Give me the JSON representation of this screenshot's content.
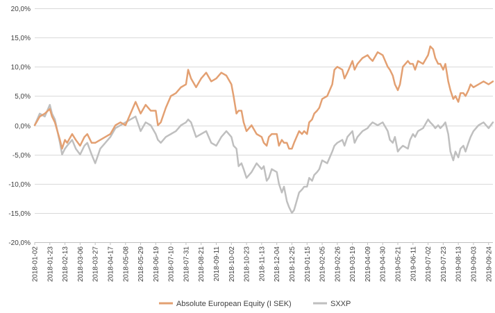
{
  "chart_data": {
    "type": "line",
    "title": "",
    "xlabel": "",
    "ylabel": "",
    "grid": true,
    "legend_position": "bottom",
    "y_range": [
      -20.0,
      20.0
    ],
    "y_ticks": [
      -20,
      -15,
      -10,
      -5,
      0,
      5,
      10,
      15,
      20
    ],
    "y_tick_labels": [
      "-20,0%",
      "-15,0%",
      "-10,0%",
      "-5,0%",
      "0,0%",
      "5,0%",
      "10,0%",
      "15,0%",
      "20,0%"
    ],
    "x_range": [
      "2018-01-02",
      "2019-09-30"
    ],
    "x_tick_labels": [
      "2018-01-02",
      "2018-01-23",
      "2018-02-13",
      "2018-03-06",
      "2018-03-27",
      "2018-04-17",
      "2018-05-08",
      "2018-05-29",
      "2018-06-19",
      "2018-07-10",
      "2018-07-31",
      "2018-08-21",
      "2018-09-11",
      "2018-10-02",
      "2018-10-23",
      "2018-11-13",
      "2018-12-04",
      "2018-12-25",
      "2019-01-15",
      "2019-02-05",
      "2019-02-26",
      "2019-03-19",
      "2019-04-09",
      "2019-04-30",
      "2019-05-21",
      "2019-06-11",
      "2019-07-02",
      "2019-07-23",
      "2019-08-13",
      "2019-09-03",
      "2019-09-24"
    ],
    "series": [
      {
        "name": "Absolute European Equity (I SEK)",
        "color": "#E3A072",
        "points": [
          [
            "2018-01-02",
            0.0
          ],
          [
            "2018-01-09",
            1.5
          ],
          [
            "2018-01-16",
            2.0
          ],
          [
            "2018-01-23",
            2.8
          ],
          [
            "2018-01-26",
            1.5
          ],
          [
            "2018-01-30",
            0.5
          ],
          [
            "2018-02-06",
            -2.5
          ],
          [
            "2018-02-09",
            -4.0
          ],
          [
            "2018-02-13",
            -2.5
          ],
          [
            "2018-02-16",
            -3.0
          ],
          [
            "2018-02-23",
            -1.5
          ],
          [
            "2018-02-28",
            -2.5
          ],
          [
            "2018-03-06",
            -3.5
          ],
          [
            "2018-03-12",
            -2.0
          ],
          [
            "2018-03-16",
            -1.5
          ],
          [
            "2018-03-22",
            -3.0
          ],
          [
            "2018-03-27",
            -3.0
          ],
          [
            "2018-04-03",
            -2.5
          ],
          [
            "2018-04-10",
            -2.0
          ],
          [
            "2018-04-17",
            -1.5
          ],
          [
            "2018-04-24",
            0.0
          ],
          [
            "2018-05-01",
            0.5
          ],
          [
            "2018-05-08",
            0.0
          ],
          [
            "2018-05-15",
            2.0
          ],
          [
            "2018-05-22",
            4.0
          ],
          [
            "2018-05-29",
            2.0
          ],
          [
            "2018-06-05",
            3.5
          ],
          [
            "2018-06-12",
            2.5
          ],
          [
            "2018-06-19",
            2.5
          ],
          [
            "2018-06-22",
            0.0
          ],
          [
            "2018-06-26",
            0.5
          ],
          [
            "2018-07-03",
            3.0
          ],
          [
            "2018-07-10",
            5.0
          ],
          [
            "2018-07-17",
            5.5
          ],
          [
            "2018-07-24",
            6.5
          ],
          [
            "2018-07-31",
            7.0
          ],
          [
            "2018-08-03",
            9.5
          ],
          [
            "2018-08-07",
            8.0
          ],
          [
            "2018-08-14",
            6.5
          ],
          [
            "2018-08-21",
            8.0
          ],
          [
            "2018-08-28",
            9.0
          ],
          [
            "2018-09-04",
            7.5
          ],
          [
            "2018-09-11",
            8.0
          ],
          [
            "2018-09-18",
            9.0
          ],
          [
            "2018-09-25",
            8.5
          ],
          [
            "2018-10-02",
            7.0
          ],
          [
            "2018-10-05",
            5.0
          ],
          [
            "2018-10-09",
            2.0
          ],
          [
            "2018-10-12",
            2.5
          ],
          [
            "2018-10-16",
            2.5
          ],
          [
            "2018-10-19",
            0.5
          ],
          [
            "2018-10-23",
            -1.0
          ],
          [
            "2018-10-30",
            0.0
          ],
          [
            "2018-11-06",
            -1.5
          ],
          [
            "2018-11-13",
            -2.0
          ],
          [
            "2018-11-16",
            -3.0
          ],
          [
            "2018-11-20",
            -3.5
          ],
          [
            "2018-11-23",
            -2.0
          ],
          [
            "2018-11-27",
            -1.5
          ],
          [
            "2018-12-04",
            -1.5
          ],
          [
            "2018-12-07",
            -3.5
          ],
          [
            "2018-12-11",
            -2.5
          ],
          [
            "2018-12-14",
            -3.0
          ],
          [
            "2018-12-18",
            -3.0
          ],
          [
            "2018-12-21",
            -4.0
          ],
          [
            "2018-12-25",
            -4.0
          ],
          [
            "2018-12-28",
            -3.0
          ],
          [
            "2019-01-04",
            -1.0
          ],
          [
            "2019-01-08",
            -1.5
          ],
          [
            "2019-01-11",
            -1.0
          ],
          [
            "2019-01-15",
            -1.5
          ],
          [
            "2019-01-18",
            0.5
          ],
          [
            "2019-01-22",
            1.0
          ],
          [
            "2019-01-25",
            2.0
          ],
          [
            "2019-01-29",
            2.5
          ],
          [
            "2019-02-01",
            3.0
          ],
          [
            "2019-02-05",
            4.5
          ],
          [
            "2019-02-12",
            5.0
          ],
          [
            "2019-02-19",
            7.0
          ],
          [
            "2019-02-22",
            9.5
          ],
          [
            "2019-02-26",
            10.0
          ],
          [
            "2019-03-05",
            9.5
          ],
          [
            "2019-03-08",
            8.0
          ],
          [
            "2019-03-12",
            9.0
          ],
          [
            "2019-03-19",
            11.0
          ],
          [
            "2019-03-22",
            9.5
          ],
          [
            "2019-03-26",
            10.5
          ],
          [
            "2019-04-02",
            11.5
          ],
          [
            "2019-04-09",
            12.0
          ],
          [
            "2019-04-12",
            11.5
          ],
          [
            "2019-04-16",
            11.0
          ],
          [
            "2019-04-23",
            12.5
          ],
          [
            "2019-04-30",
            12.0
          ],
          [
            "2019-05-07",
            10.0
          ],
          [
            "2019-05-10",
            9.5
          ],
          [
            "2019-05-14",
            8.5
          ],
          [
            "2019-05-17",
            7.0
          ],
          [
            "2019-05-21",
            6.0
          ],
          [
            "2019-05-24",
            7.0
          ],
          [
            "2019-05-28",
            10.0
          ],
          [
            "2019-06-04",
            11.0
          ],
          [
            "2019-06-07",
            10.5
          ],
          [
            "2019-06-11",
            10.5
          ],
          [
            "2019-06-14",
            9.5
          ],
          [
            "2019-06-18",
            11.0
          ],
          [
            "2019-06-25",
            10.5
          ],
          [
            "2019-07-02",
            12.0
          ],
          [
            "2019-07-05",
            13.5
          ],
          [
            "2019-07-09",
            13.0
          ],
          [
            "2019-07-12",
            11.5
          ],
          [
            "2019-07-16",
            10.5
          ],
          [
            "2019-07-19",
            10.5
          ],
          [
            "2019-07-23",
            9.5
          ],
          [
            "2019-07-26",
            10.5
          ],
          [
            "2019-07-30",
            7.5
          ],
          [
            "2019-08-02",
            6.0
          ],
          [
            "2019-08-06",
            4.5
          ],
          [
            "2019-08-09",
            5.0
          ],
          [
            "2019-08-13",
            4.0
          ],
          [
            "2019-08-16",
            5.5
          ],
          [
            "2019-08-20",
            5.5
          ],
          [
            "2019-08-23",
            5.0
          ],
          [
            "2019-08-27",
            6.0
          ],
          [
            "2019-08-30",
            7.0
          ],
          [
            "2019-09-03",
            6.5
          ],
          [
            "2019-09-10",
            7.0
          ],
          [
            "2019-09-17",
            7.5
          ],
          [
            "2019-09-24",
            7.0
          ],
          [
            "2019-09-30",
            7.5
          ]
        ]
      },
      {
        "name": "SXXP",
        "color": "#BFBFBF",
        "points": [
          [
            "2018-01-02",
            0.0
          ],
          [
            "2018-01-09",
            2.0
          ],
          [
            "2018-01-16",
            1.5
          ],
          [
            "2018-01-23",
            3.5
          ],
          [
            "2018-01-26",
            2.0
          ],
          [
            "2018-01-30",
            1.0
          ],
          [
            "2018-02-06",
            -3.0
          ],
          [
            "2018-02-09",
            -5.0
          ],
          [
            "2018-02-13",
            -4.0
          ],
          [
            "2018-02-16",
            -3.5
          ],
          [
            "2018-02-23",
            -2.5
          ],
          [
            "2018-02-28",
            -4.0
          ],
          [
            "2018-03-06",
            -5.0
          ],
          [
            "2018-03-12",
            -3.5
          ],
          [
            "2018-03-16",
            -3.0
          ],
          [
            "2018-03-22",
            -5.0
          ],
          [
            "2018-03-27",
            -6.5
          ],
          [
            "2018-04-03",
            -4.0
          ],
          [
            "2018-04-10",
            -3.0
          ],
          [
            "2018-04-17",
            -2.0
          ],
          [
            "2018-04-24",
            -0.5
          ],
          [
            "2018-05-01",
            0.0
          ],
          [
            "2018-05-08",
            0.5
          ],
          [
            "2018-05-15",
            1.0
          ],
          [
            "2018-05-22",
            1.5
          ],
          [
            "2018-05-29",
            -1.0
          ],
          [
            "2018-06-05",
            0.5
          ],
          [
            "2018-06-12",
            0.0
          ],
          [
            "2018-06-19",
            -1.5
          ],
          [
            "2018-06-22",
            -2.5
          ],
          [
            "2018-06-26",
            -3.0
          ],
          [
            "2018-07-03",
            -2.0
          ],
          [
            "2018-07-10",
            -1.5
          ],
          [
            "2018-07-17",
            -1.0
          ],
          [
            "2018-07-24",
            0.0
          ],
          [
            "2018-07-31",
            0.5
          ],
          [
            "2018-08-03",
            1.0
          ],
          [
            "2018-08-07",
            0.5
          ],
          [
            "2018-08-14",
            -2.0
          ],
          [
            "2018-08-21",
            -1.5
          ],
          [
            "2018-08-28",
            -1.0
          ],
          [
            "2018-09-04",
            -3.0
          ],
          [
            "2018-09-11",
            -3.5
          ],
          [
            "2018-09-18",
            -2.0
          ],
          [
            "2018-09-25",
            -1.0
          ],
          [
            "2018-10-02",
            -2.0
          ],
          [
            "2018-10-05",
            -3.5
          ],
          [
            "2018-10-09",
            -4.0
          ],
          [
            "2018-10-12",
            -7.0
          ],
          [
            "2018-10-16",
            -6.5
          ],
          [
            "2018-10-19",
            -7.5
          ],
          [
            "2018-10-23",
            -9.0
          ],
          [
            "2018-10-30",
            -8.0
          ],
          [
            "2018-11-06",
            -6.5
          ],
          [
            "2018-11-13",
            -7.5
          ],
          [
            "2018-11-16",
            -7.0
          ],
          [
            "2018-11-20",
            -9.5
          ],
          [
            "2018-11-23",
            -9.0
          ],
          [
            "2018-11-27",
            -7.5
          ],
          [
            "2018-12-04",
            -8.0
          ],
          [
            "2018-12-07",
            -10.0
          ],
          [
            "2018-12-11",
            -11.5
          ],
          [
            "2018-12-14",
            -10.5
          ],
          [
            "2018-12-18",
            -13.0
          ],
          [
            "2018-12-21",
            -14.0
          ],
          [
            "2018-12-25",
            -15.0
          ],
          [
            "2018-12-28",
            -14.5
          ],
          [
            "2019-01-04",
            -11.5
          ],
          [
            "2019-01-08",
            -11.0
          ],
          [
            "2019-01-11",
            -10.5
          ],
          [
            "2019-01-15",
            -10.5
          ],
          [
            "2019-01-18",
            -9.0
          ],
          [
            "2019-01-22",
            -9.5
          ],
          [
            "2019-01-25",
            -8.5
          ],
          [
            "2019-01-29",
            -8.0
          ],
          [
            "2019-02-01",
            -7.5
          ],
          [
            "2019-02-05",
            -6.0
          ],
          [
            "2019-02-12",
            -6.5
          ],
          [
            "2019-02-19",
            -4.5
          ],
          [
            "2019-02-22",
            -3.5
          ],
          [
            "2019-02-26",
            -3.0
          ],
          [
            "2019-03-05",
            -2.5
          ],
          [
            "2019-03-08",
            -3.5
          ],
          [
            "2019-03-12",
            -2.0
          ],
          [
            "2019-03-19",
            -1.0
          ],
          [
            "2019-03-22",
            -3.0
          ],
          [
            "2019-03-26",
            -2.0
          ],
          [
            "2019-04-02",
            -1.0
          ],
          [
            "2019-04-09",
            -0.5
          ],
          [
            "2019-04-12",
            0.0
          ],
          [
            "2019-04-16",
            0.5
          ],
          [
            "2019-04-23",
            0.0
          ],
          [
            "2019-04-30",
            0.5
          ],
          [
            "2019-05-07",
            -1.0
          ],
          [
            "2019-05-10",
            -2.5
          ],
          [
            "2019-05-14",
            -3.0
          ],
          [
            "2019-05-17",
            -2.0
          ],
          [
            "2019-05-21",
            -4.5
          ],
          [
            "2019-05-24",
            -4.0
          ],
          [
            "2019-05-28",
            -3.5
          ],
          [
            "2019-06-04",
            -4.0
          ],
          [
            "2019-06-07",
            -2.5
          ],
          [
            "2019-06-11",
            -1.5
          ],
          [
            "2019-06-14",
            -2.0
          ],
          [
            "2019-06-18",
            -1.0
          ],
          [
            "2019-06-25",
            -0.5
          ],
          [
            "2019-07-02",
            1.0
          ],
          [
            "2019-07-05",
            0.5
          ],
          [
            "2019-07-09",
            0.0
          ],
          [
            "2019-07-12",
            -0.5
          ],
          [
            "2019-07-16",
            0.0
          ],
          [
            "2019-07-19",
            -0.5
          ],
          [
            "2019-07-23",
            0.0
          ],
          [
            "2019-07-26",
            0.5
          ],
          [
            "2019-07-30",
            -1.5
          ],
          [
            "2019-08-02",
            -4.5
          ],
          [
            "2019-08-06",
            -6.0
          ],
          [
            "2019-08-09",
            -4.5
          ],
          [
            "2019-08-13",
            -5.5
          ],
          [
            "2019-08-16",
            -4.0
          ],
          [
            "2019-08-20",
            -3.5
          ],
          [
            "2019-08-23",
            -4.5
          ],
          [
            "2019-08-27",
            -3.0
          ],
          [
            "2019-08-30",
            -2.0
          ],
          [
            "2019-09-03",
            -1.0
          ],
          [
            "2019-09-10",
            0.0
          ],
          [
            "2019-09-17",
            0.5
          ],
          [
            "2019-09-24",
            -0.5
          ],
          [
            "2019-09-30",
            0.5
          ]
        ]
      }
    ]
  }
}
